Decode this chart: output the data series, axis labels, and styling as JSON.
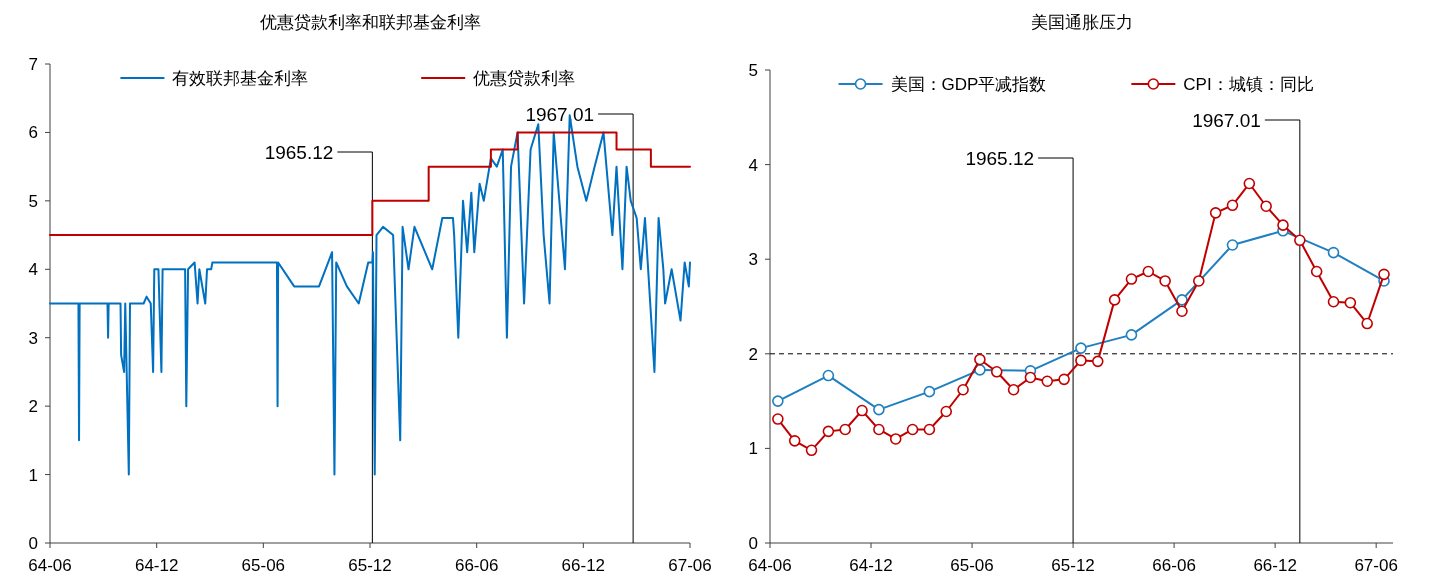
{
  "chart_data": [
    {
      "type": "line",
      "title": "优惠贷款利率和联邦基金利率",
      "xlim": [
        "1964-06",
        "1967-06"
      ],
      "ylim": [
        0,
        7
      ],
      "yticks": [
        0,
        1,
        2,
        3,
        4,
        5,
        6,
        7
      ],
      "legend": "top",
      "grid": false,
      "xticks": [
        {
          "value": "1964-06",
          "label": "64-06"
        },
        {
          "value": "1964-12",
          "label": "64-12"
        },
        {
          "value": "1965-06",
          "label": "65-06"
        },
        {
          "value": "1965-12",
          "label": "65-12"
        },
        {
          "value": "1966-06",
          "label": "66-06"
        },
        {
          "value": "1966-12",
          "label": "66-12"
        },
        {
          "value": "1967-06",
          "label": "67-06"
        }
      ],
      "ref_lines": [
        {
          "axis": "x",
          "value": "1965-12-05",
          "label": "1965.12",
          "color": "#000000"
        },
        {
          "axis": "x",
          "value": "1967-02-25",
          "label": "1967.01",
          "color": "#000000"
        }
      ],
      "series": [
        {
          "name": "有效联邦基金利率",
          "color": "#0070c0",
          "x": [
            "1964-06-01",
            "1964-07-19",
            "1964-07-20",
            "1964-07-21",
            "1964-09-08",
            "1964-09-09",
            "1964-09-10",
            "1964-09-30",
            "1964-10-01",
            "1964-10-06",
            "1964-10-08",
            "1964-10-14",
            "1964-10-16",
            "1964-11-09",
            "1964-11-14",
            "1964-11-21",
            "1964-11-25",
            "1964-11-27",
            "1964-12-04",
            "1964-12-09",
            "1964-12-11",
            "1965-01-19",
            "1965-01-21",
            "1965-01-24",
            "1965-02-05",
            "1965-02-10",
            "1965-02-13",
            "1965-02-23",
            "1965-02-26",
            "1965-03-03",
            "1965-03-05",
            "1965-06-24",
            "1965-06-25",
            "1965-06-26",
            "1965-07-23",
            "1965-09-05",
            "1965-09-27",
            "1965-10-01",
            "1965-10-04",
            "1965-10-22",
            "1965-11-12",
            "1965-11-28",
            "1965-12-05",
            "1965-12-06",
            "1965-12-09",
            "1965-12-12",
            "1965-12-23",
            "1966-01-10",
            "1966-01-22",
            "1966-01-26",
            "1966-02-06",
            "1966-02-16",
            "1966-03-16",
            "1966-04-03",
            "1966-04-21",
            "1966-04-23",
            "1966-04-30",
            "1966-05-08",
            "1966-05-15",
            "1966-05-22",
            "1966-05-27",
            "1966-06-06",
            "1966-06-13",
            "1966-06-25",
            "1966-07-05",
            "1966-07-15",
            "1966-07-22",
            "1966-07-29",
            "1966-08-10",
            "1966-08-21",
            "1966-09-02",
            "1966-09-15",
            "1966-09-24",
            "1966-10-04",
            "1966-10-11",
            "1966-10-30",
            "1966-11-08",
            "1966-11-21",
            "1966-12-06",
            "1966-12-20",
            "1967-01-05",
            "1967-01-20",
            "1967-01-27",
            "1967-02-07",
            "1967-02-14",
            "1967-02-21",
            "1967-03-01",
            "1967-03-08",
            "1967-03-15",
            "1967-04-01",
            "1967-04-08",
            "1967-04-16",
            "1967-04-19",
            "1967-04-30",
            "1967-05-15",
            "1967-05-22",
            "1967-05-29",
            "1967-06-01"
          ],
          "values": [
            3.5,
            3.5,
            1.5,
            3.5,
            3.5,
            3.0,
            3.5,
            3.5,
            2.75,
            2.5,
            3.5,
            1.0,
            3.5,
            3.5,
            3.6,
            3.5,
            2.5,
            4.0,
            4.0,
            2.5,
            4.0,
            4.0,
            2.0,
            4.0,
            4.1,
            3.5,
            4.0,
            3.5,
            4.0,
            4.0,
            4.1,
            4.1,
            2.0,
            4.1,
            3.75,
            3.75,
            4.25,
            1.0,
            4.1,
            3.75,
            3.5,
            4.1,
            4.1,
            4.25,
            1.0,
            4.5,
            4.62,
            4.5,
            1.5,
            4.62,
            4.0,
            4.62,
            4.0,
            4.75,
            4.75,
            4.5,
            3.0,
            5.0,
            4.25,
            5.12,
            4.25,
            5.25,
            5.0,
            5.62,
            5.5,
            5.75,
            3.0,
            5.5,
            6.0,
            3.5,
            5.75,
            6.12,
            4.5,
            3.5,
            6.0,
            4.0,
            6.25,
            5.5,
            5.0,
            5.5,
            6.0,
            4.5,
            5.5,
            4.0,
            5.5,
            5.0,
            4.75,
            4.0,
            4.75,
            2.5,
            4.75,
            4.0,
            3.5,
            4.0,
            3.25,
            4.1,
            3.75,
            4.1
          ]
        },
        {
          "name": "优惠贷款利率",
          "color": "#c00000",
          "type": "step",
          "x": [
            "1964-06-01",
            "1965-12-05",
            "1966-03-10",
            "1966-06-25",
            "1966-08-10",
            "1967-01-27",
            "1967-03-25",
            "1967-06-01"
          ],
          "values": [
            4.5,
            5.0,
            5.5,
            5.75,
            6.0,
            5.75,
            5.5,
            5.5
          ]
        }
      ]
    },
    {
      "type": "line",
      "title": "美国通胀压力",
      "xlim": [
        "1964-06",
        "1967-07"
      ],
      "ylim": [
        0,
        5
      ],
      "yticks": [
        0,
        1,
        2,
        3,
        4,
        5
      ],
      "legend": "top",
      "grid": false,
      "marker": "circle",
      "xticks": [
        {
          "value": "1964-06",
          "label": "64-06"
        },
        {
          "value": "1964-12",
          "label": "64-12"
        },
        {
          "value": "1965-06",
          "label": "65-06"
        },
        {
          "value": "1965-12",
          "label": "65-12"
        },
        {
          "value": "1966-06",
          "label": "66-06"
        },
        {
          "value": "1966-12",
          "label": "66-12"
        },
        {
          "value": "1967-06",
          "label": "67-06"
        }
      ],
      "ref_lines": [
        {
          "axis": "y",
          "value": 2,
          "label": null,
          "color": "#000000",
          "line_style": "dashed"
        },
        {
          "axis": "x",
          "value": "1965-12",
          "label": "1965.12",
          "color": "#000000"
        },
        {
          "axis": "x",
          "value": "1967-01-15",
          "label": "1967.01",
          "color": "#000000"
        }
      ],
      "series": [
        {
          "name": "美国：GDP平减指数",
          "color": "#1f7fc0",
          "x": [
            "1964-06-15",
            "1964-09-15",
            "1964-12-15",
            "1965-03-15",
            "1965-06-15",
            "1965-09-15",
            "1965-12-15",
            "1966-03-15",
            "1966-06-15",
            "1966-09-15",
            "1966-12-15",
            "1967-03-15",
            "1967-06-15"
          ],
          "values": [
            1.5,
            1.77,
            1.41,
            1.6,
            1.83,
            1.82,
            2.06,
            2.2,
            2.57,
            3.15,
            3.3,
            3.07,
            2.77
          ]
        },
        {
          "name": "CPI：城镇：同比",
          "color": "#c00000",
          "x": [
            "1964-06-15",
            "1964-07-15",
            "1964-08-15",
            "1964-09-15",
            "1964-10-15",
            "1964-11-15",
            "1964-12-15",
            "1965-01-15",
            "1965-02-15",
            "1965-03-15",
            "1965-04-15",
            "1965-05-15",
            "1965-06-15",
            "1965-07-15",
            "1965-08-15",
            "1965-09-15",
            "1965-10-15",
            "1965-11-15",
            "1965-12-15",
            "1966-01-15",
            "1966-02-15",
            "1966-03-15",
            "1966-04-15",
            "1966-05-15",
            "1966-06-15",
            "1966-07-15",
            "1966-08-15",
            "1966-09-15",
            "1966-10-15",
            "1966-11-15",
            "1966-12-15",
            "1967-01-15",
            "1967-02-15",
            "1967-03-15",
            "1967-04-15",
            "1967-05-15",
            "1967-06-15"
          ],
          "values": [
            1.31,
            1.08,
            0.98,
            1.18,
            1.2,
            1.4,
            1.2,
            1.1,
            1.2,
            1.2,
            1.39,
            1.62,
            1.94,
            1.81,
            1.62,
            1.75,
            1.71,
            1.73,
            1.93,
            1.92,
            2.57,
            2.79,
            2.87,
            2.77,
            2.45,
            2.77,
            3.49,
            3.57,
            3.8,
            3.56,
            3.36,
            3.2,
            2.87,
            2.55,
            2.54,
            2.32,
            2.84
          ]
        }
      ]
    }
  ]
}
